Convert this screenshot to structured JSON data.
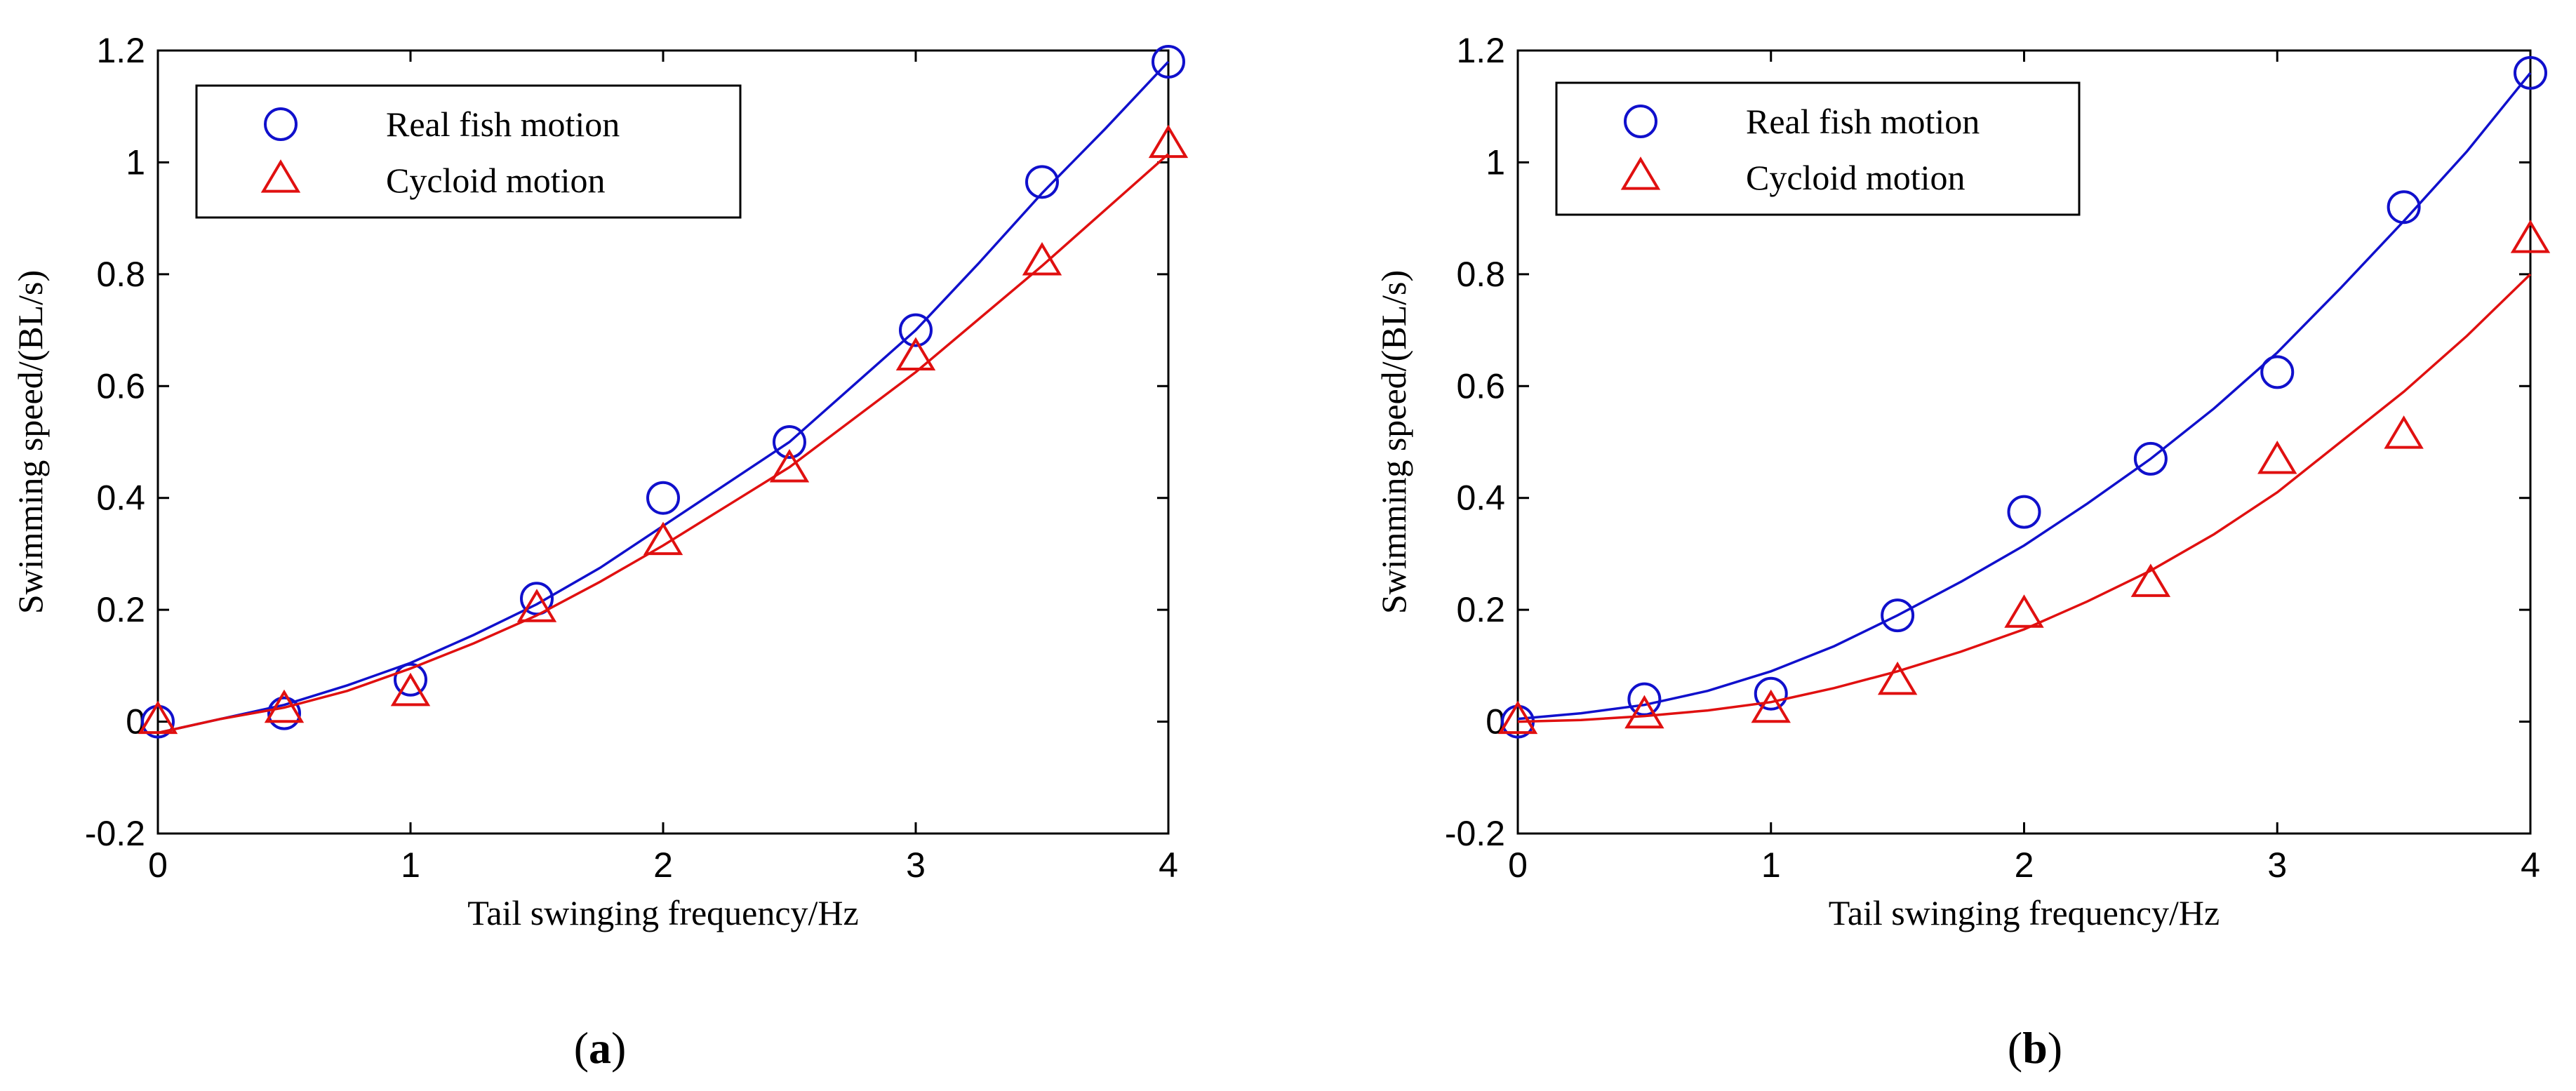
{
  "colors": {
    "blue": "#1010cc",
    "red": "#e01010",
    "axis": "#000000"
  },
  "chart_data": [
    {
      "type": "scatter",
      "panel_label": "a",
      "xlabel": "Tail swinging frequency/Hz",
      "ylabel": "Swimming speed/(BL/s)",
      "xlim": [
        0,
        4
      ],
      "ylim": [
        -0.2,
        1.2
      ],
      "xticks": [
        0,
        1,
        2,
        3,
        4
      ],
      "yticks": [
        -0.2,
        0,
        0.2,
        0.4,
        0.6,
        0.8,
        1,
        1.2
      ],
      "ytick_labels": [
        "-0.2",
        "0",
        "0.2",
        "0.4",
        "0.6",
        "0.8",
        "1",
        "1.2"
      ],
      "x": [
        0,
        0.5,
        1,
        1.5,
        2,
        2.5,
        3,
        3.5,
        4
      ],
      "legend": {
        "location": "top-left"
      },
      "series": [
        {
          "name": "Real fish motion",
          "marker": "circle",
          "color": "#1010cc",
          "values": [
            0,
            0.015,
            0.075,
            0.22,
            0.4,
            0.5,
            0.7,
            0.965,
            1.18
          ],
          "fit": {
            "x": [
              0,
              0.25,
              0.5,
              0.75,
              1,
              1.25,
              1.5,
              1.75,
              2,
              2.25,
              2.5,
              2.75,
              3,
              3.25,
              3.5,
              3.75,
              4
            ],
            "y": [
              -0.02,
              0.005,
              0.03,
              0.065,
              0.105,
              0.155,
              0.21,
              0.275,
              0.35,
              0.425,
              0.5,
              0.6,
              0.7,
              0.82,
              0.945,
              1.06,
              1.18
            ]
          }
        },
        {
          "name": "Cycloid motion",
          "marker": "triangle",
          "color": "#e01010",
          "values": [
            0,
            0.02,
            0.05,
            0.2,
            0.32,
            0.45,
            0.65,
            0.82,
            1.03
          ],
          "fit": {
            "x": [
              0,
              0.25,
              0.5,
              0.75,
              1,
              1.25,
              1.5,
              1.75,
              2,
              2.25,
              2.5,
              2.75,
              3,
              3.25,
              3.5,
              3.75,
              4
            ],
            "y": [
              -0.02,
              0.005,
              0.025,
              0.055,
              0.095,
              0.14,
              0.19,
              0.25,
              0.315,
              0.385,
              0.455,
              0.54,
              0.625,
              0.72,
              0.815,
              0.915,
              1.015
            ]
          }
        }
      ]
    },
    {
      "type": "scatter",
      "panel_label": "b",
      "xlabel": "Tail swinging frequency/Hz",
      "ylabel": "Swimming speed/(BL/s)",
      "xlim": [
        0,
        4
      ],
      "ylim": [
        -0.2,
        1.2
      ],
      "xticks": [
        0,
        1,
        2,
        3,
        4
      ],
      "yticks": [
        -0.2,
        0,
        0.2,
        0.4,
        0.6,
        0.8,
        1,
        1.2
      ],
      "ytick_labels": [
        "-0.2",
        "0",
        "0.2",
        "0.4",
        "0.6",
        "0.8",
        "1",
        "1.2"
      ],
      "x": [
        0,
        0.5,
        1,
        1.5,
        2,
        2.5,
        3,
        3.5,
        4
      ],
      "legend": {
        "location": "top-left"
      },
      "series": [
        {
          "name": "Real fish motion",
          "marker": "circle",
          "color": "#1010cc",
          "values": [
            0,
            0.04,
            0.05,
            0.19,
            0.375,
            0.47,
            0.625,
            0.92,
            1.16
          ],
          "fit": {
            "x": [
              0,
              0.25,
              0.5,
              0.75,
              1,
              1.25,
              1.5,
              1.75,
              2,
              2.25,
              2.5,
              2.75,
              3,
              3.25,
              3.5,
              3.75,
              4
            ],
            "y": [
              0.005,
              0.015,
              0.03,
              0.055,
              0.09,
              0.135,
              0.19,
              0.25,
              0.315,
              0.39,
              0.47,
              0.56,
              0.66,
              0.775,
              0.895,
              1.02,
              1.16
            ]
          }
        },
        {
          "name": "Cycloid motion",
          "marker": "triangle",
          "color": "#e01010",
          "values": [
            0,
            0.01,
            0.02,
            0.07,
            0.19,
            0.245,
            0.465,
            0.51,
            0.86
          ],
          "fit": {
            "x": [
              0,
              0.25,
              0.5,
              0.75,
              1,
              1.25,
              1.5,
              1.75,
              2,
              2.25,
              2.5,
              2.75,
              3,
              3.25,
              3.5,
              3.75,
              4
            ],
            "y": [
              0.0,
              0.003,
              0.01,
              0.02,
              0.035,
              0.06,
              0.09,
              0.125,
              0.165,
              0.215,
              0.27,
              0.335,
              0.41,
              0.5,
              0.59,
              0.69,
              0.8
            ]
          }
        }
      ]
    }
  ]
}
